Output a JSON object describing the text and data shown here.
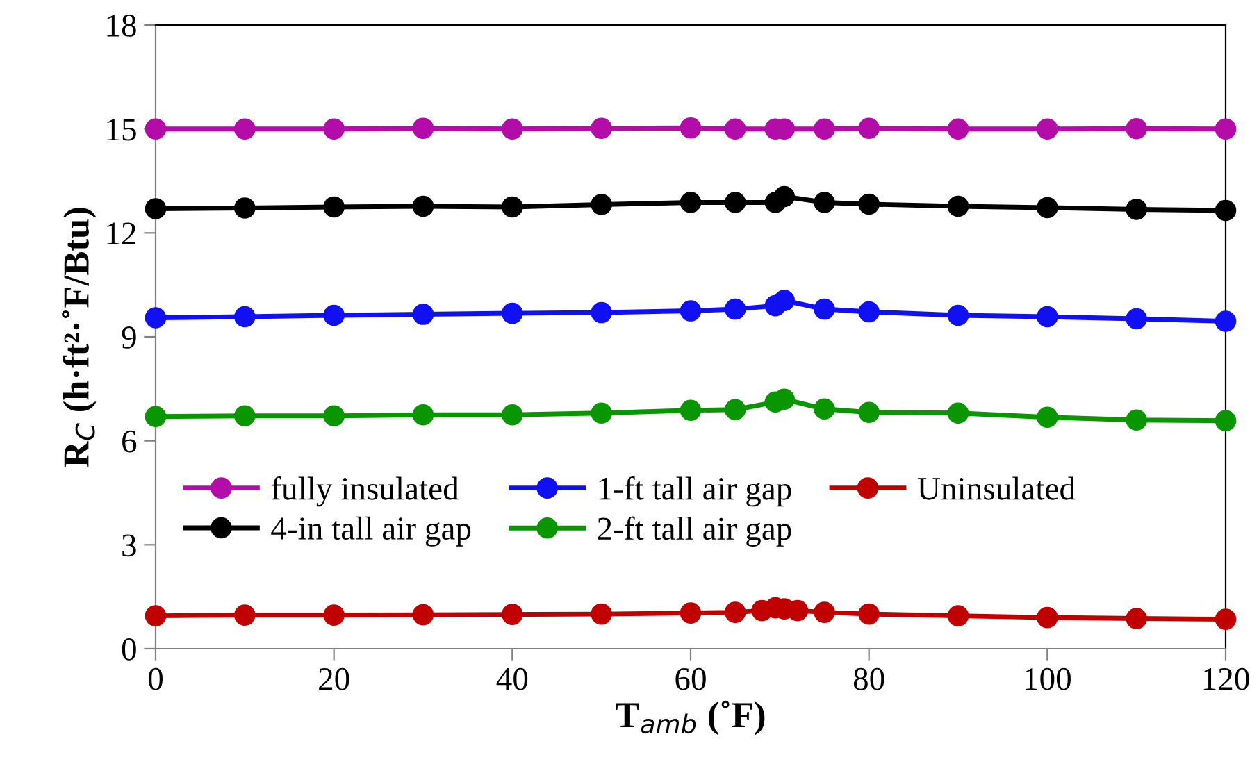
{
  "chart_data": {
    "type": "line",
    "xlabel": "T$_{amb}$ (˚F)",
    "ylabel": "R$_{C}$ (h·ft²·˚F/Btu)",
    "x": [
      0,
      10,
      20,
      30,
      40,
      50,
      60,
      65,
      69.5,
      70.5,
      75,
      80,
      90,
      100,
      110,
      120
    ],
    "xlim": [
      0,
      120
    ],
    "xticks": [
      0,
      20,
      40,
      60,
      80,
      100,
      120
    ],
    "ylim": [
      0,
      18
    ],
    "yticks": [
      0,
      3,
      6,
      9,
      12,
      15,
      18
    ],
    "marker": "circle",
    "line_style": "solid",
    "grid": false,
    "legend": "center left",
    "series": [
      {
        "name": "fully insulated",
        "color": "#b40ca8",
        "values": [
          15.0,
          15.0,
          15.0,
          15.02,
          15.0,
          15.02,
          15.03,
          15.0,
          15.0,
          15.0,
          15.0,
          15.02,
          15.0,
          15.0,
          15.01,
          15.0
        ]
      },
      {
        "name": "4-in tall air gap",
        "color": "#000000",
        "values": [
          12.7,
          12.72,
          12.75,
          12.77,
          12.75,
          12.82,
          12.88,
          12.88,
          12.88,
          13.05,
          12.88,
          12.83,
          12.77,
          12.73,
          12.68,
          12.65
        ]
      },
      {
        "name": "1-ft tall air gap",
        "color": "#1010f0",
        "values": [
          9.55,
          9.58,
          9.62,
          9.65,
          9.68,
          9.7,
          9.75,
          9.8,
          9.9,
          10.05,
          9.8,
          9.72,
          9.62,
          9.58,
          9.52,
          9.45
        ]
      },
      {
        "name": "2-ft tall air gap",
        "color": "#0a9600",
        "values": [
          6.7,
          6.72,
          6.72,
          6.75,
          6.75,
          6.8,
          6.88,
          6.9,
          7.12,
          7.2,
          6.92,
          6.82,
          6.8,
          6.68,
          6.6,
          6.58
        ]
      },
      {
        "name": "Uninsulated",
        "color": "#c00000",
        "x": [
          0,
          10,
          20,
          30,
          40,
          50,
          60,
          65,
          68,
          69.5,
          70.5,
          72,
          75,
          80,
          90,
          100,
          110,
          120
        ],
        "values": [
          0.95,
          0.97,
          0.97,
          0.98,
          0.99,
          1.0,
          1.03,
          1.05,
          1.1,
          1.18,
          1.15,
          1.1,
          1.05,
          1.0,
          0.95,
          0.9,
          0.87,
          0.85
        ]
      }
    ]
  }
}
